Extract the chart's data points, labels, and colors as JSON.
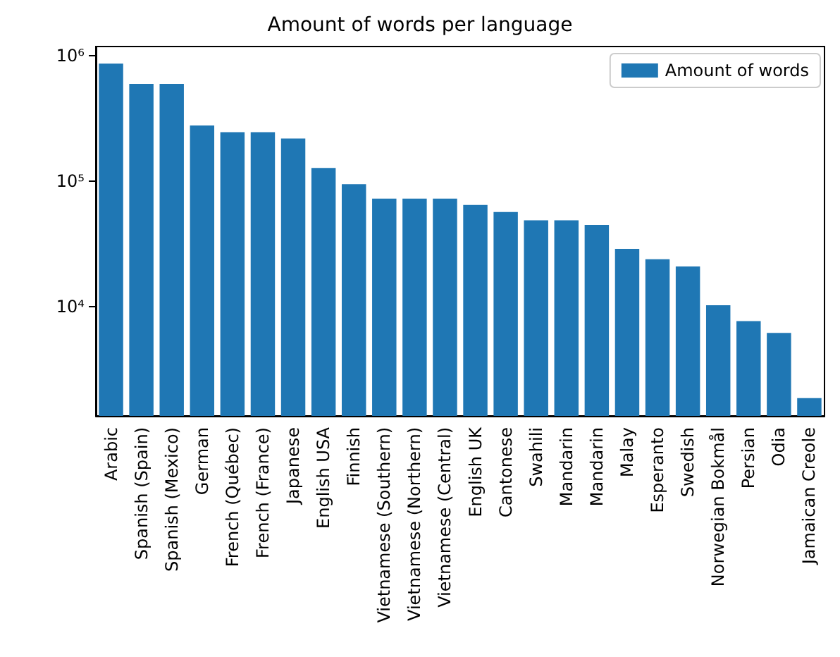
{
  "chart_data": {
    "type": "bar",
    "title": "Amount of words per language",
    "categories": [
      "Arabic",
      "Spanish (Spain)",
      "Spanish (Mexico)",
      "German",
      "French (Québec)",
      "French (France)",
      "Japanese",
      "English USA",
      "Finnish",
      "Vietnamese (Southern)",
      "Vietnamese (Northern)",
      "Vietnamese (Central)",
      "English UK",
      "Cantonese",
      "Swahili",
      "Mandarin",
      "Mandarin",
      "Malay",
      "Esperanto",
      "Swedish",
      "Norwegian Bokmål",
      "Persian",
      "Odia",
      "Jamaican Creole"
    ],
    "series": [
      {
        "name": "Amount of words",
        "color": "#1f77b4",
        "values": [
          870000,
          600000,
          600000,
          279000,
          247000,
          247000,
          220000,
          128000,
          95000,
          73000,
          73000,
          73000,
          65000,
          57000,
          49000,
          49000,
          45000,
          29000,
          24000,
          21000,
          10300,
          7700,
          6200,
          1870
        ]
      }
    ],
    "log": "y",
    "ylim": [
      1350,
      1190000
    ],
    "yticks": [
      {
        "value": 10000,
        "label": "10⁴"
      },
      {
        "value": 100000,
        "label": "10⁵"
      },
      {
        "value": 1000000,
        "label": "10⁶"
      }
    ],
    "legend": "top right",
    "grid": false
  }
}
